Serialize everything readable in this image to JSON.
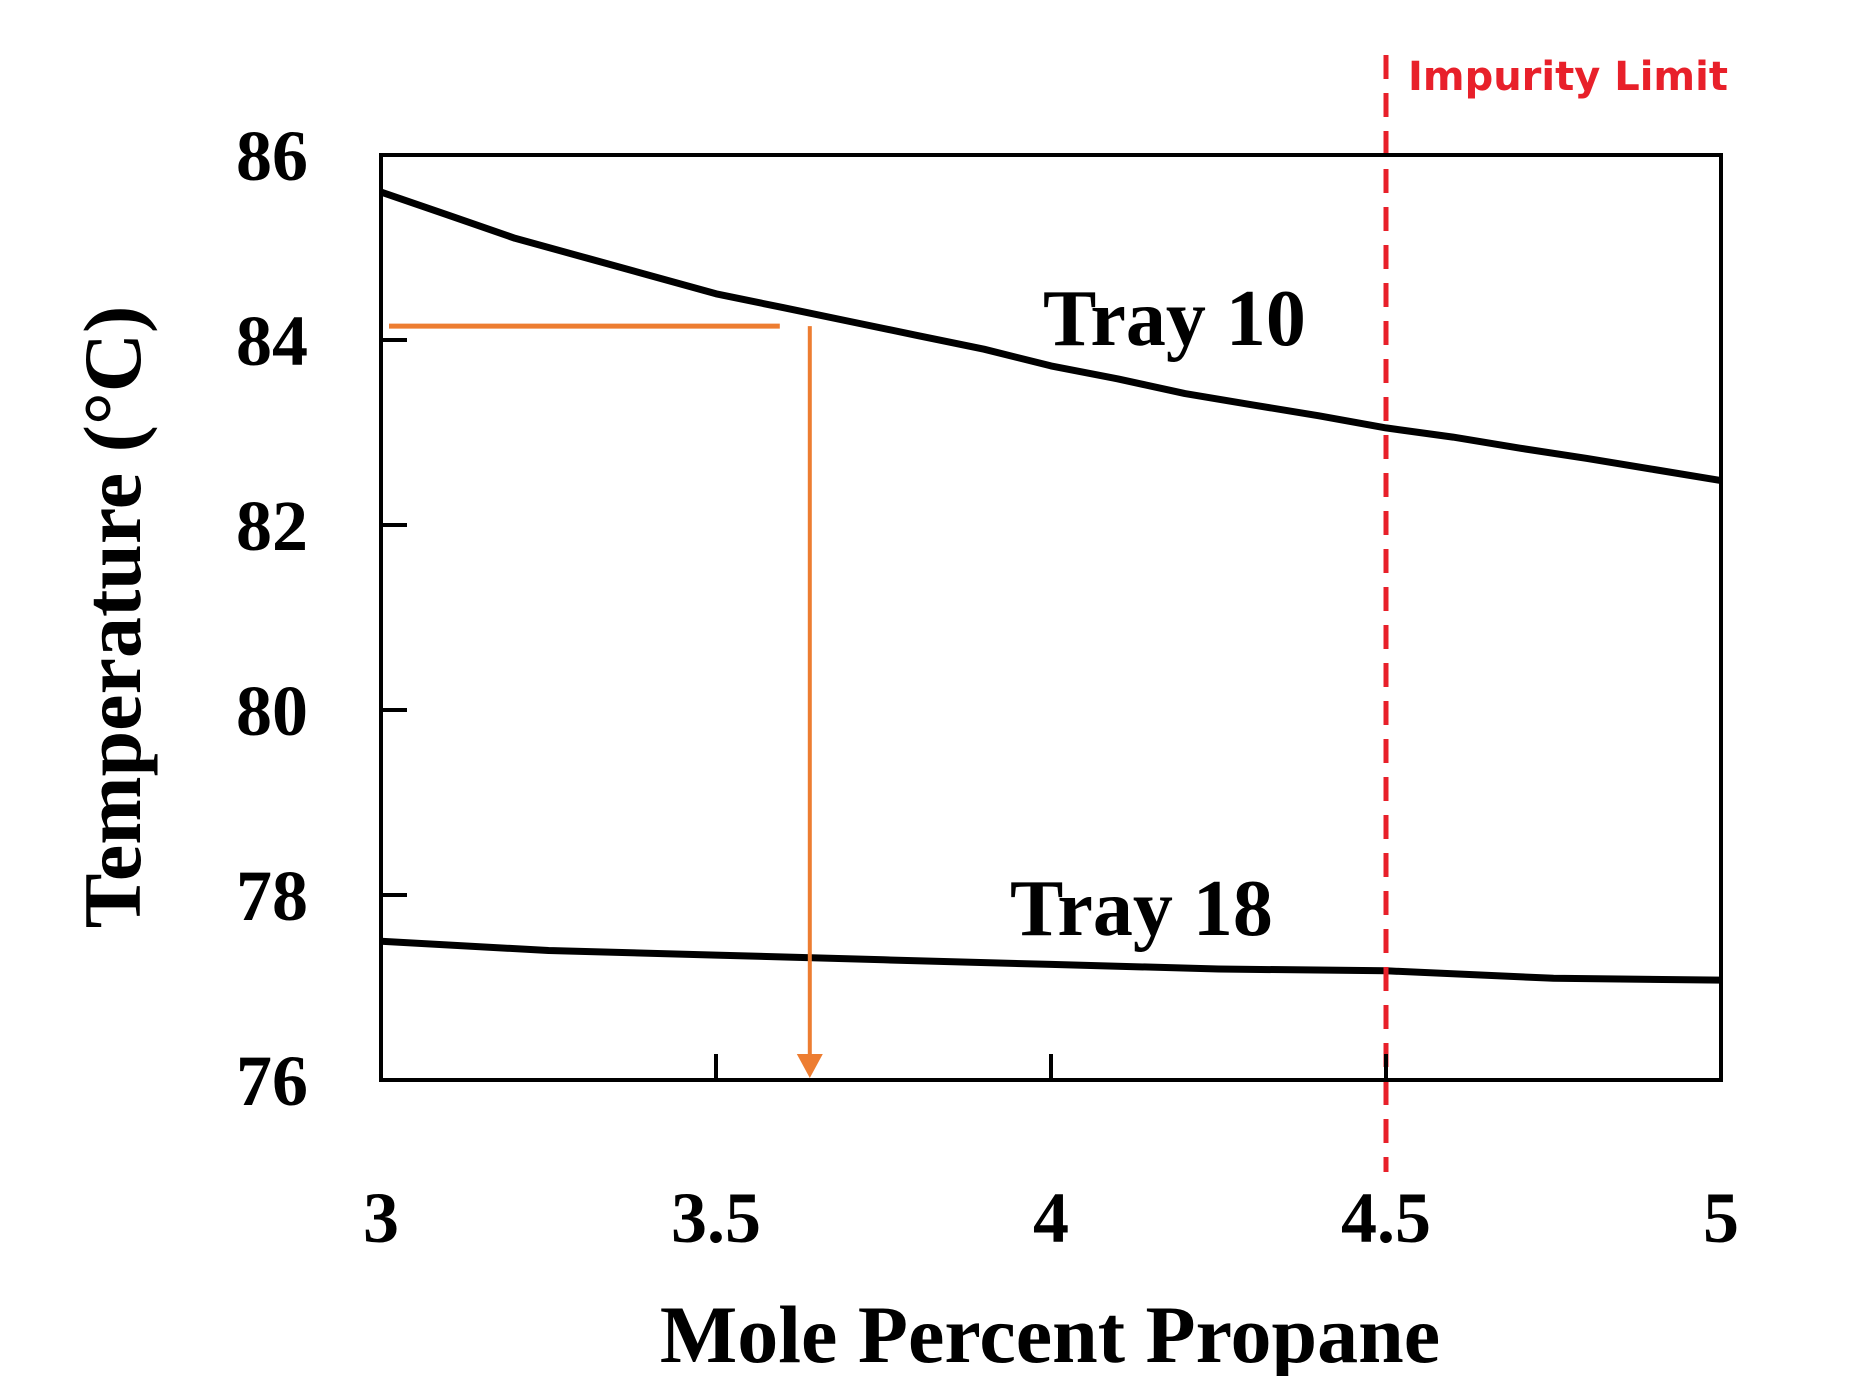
{
  "chart_data": {
    "type": "line",
    "xlabel": "Mole Percent Propane",
    "ylabel": "Temperature (°C)",
    "xlim": [
      3,
      5
    ],
    "ylim": [
      76,
      86
    ],
    "xticks": [
      3,
      3.5,
      4,
      4.5,
      5
    ],
    "xtick_labels": [
      "3",
      "3.5",
      "4",
      "4.5",
      "5"
    ],
    "yticks": [
      76,
      78,
      80,
      82,
      84,
      86
    ],
    "ytick_labels": [
      "76",
      "78",
      "80",
      "82",
      "84",
      "86"
    ],
    "series": [
      {
        "name": "Tray 10",
        "x": [
          3.0,
          3.1,
          3.2,
          3.3,
          3.4,
          3.5,
          3.6,
          3.7,
          3.8,
          3.9,
          4.0,
          4.1,
          4.2,
          4.3,
          4.4,
          4.5,
          4.6,
          4.7,
          4.8,
          4.9,
          5.0
        ],
        "y": [
          85.6,
          85.35,
          85.1,
          84.9,
          84.7,
          84.5,
          84.35,
          84.2,
          84.05,
          83.9,
          83.72,
          83.58,
          83.42,
          83.3,
          83.18,
          83.05,
          82.95,
          82.83,
          82.72,
          82.6,
          82.48
        ],
        "color": "#000000"
      },
      {
        "name": "Tray 18",
        "x": [
          3.0,
          3.25,
          3.5,
          3.75,
          4.0,
          4.25,
          4.5,
          4.75,
          5.0
        ],
        "y": [
          77.5,
          77.4,
          77.35,
          77.3,
          77.25,
          77.2,
          77.18,
          77.1,
          77.08
        ],
        "color": "#000000"
      }
    ],
    "annotations": [
      {
        "type": "vline",
        "x": 4.5,
        "label": "Impurity Limit",
        "color": "#e8202a",
        "style": "dashed"
      },
      {
        "type": "lookup",
        "from_y": 84.15,
        "at_x": 3.64,
        "color": "#ed7d31"
      }
    ],
    "grid": false,
    "legend": "none"
  }
}
